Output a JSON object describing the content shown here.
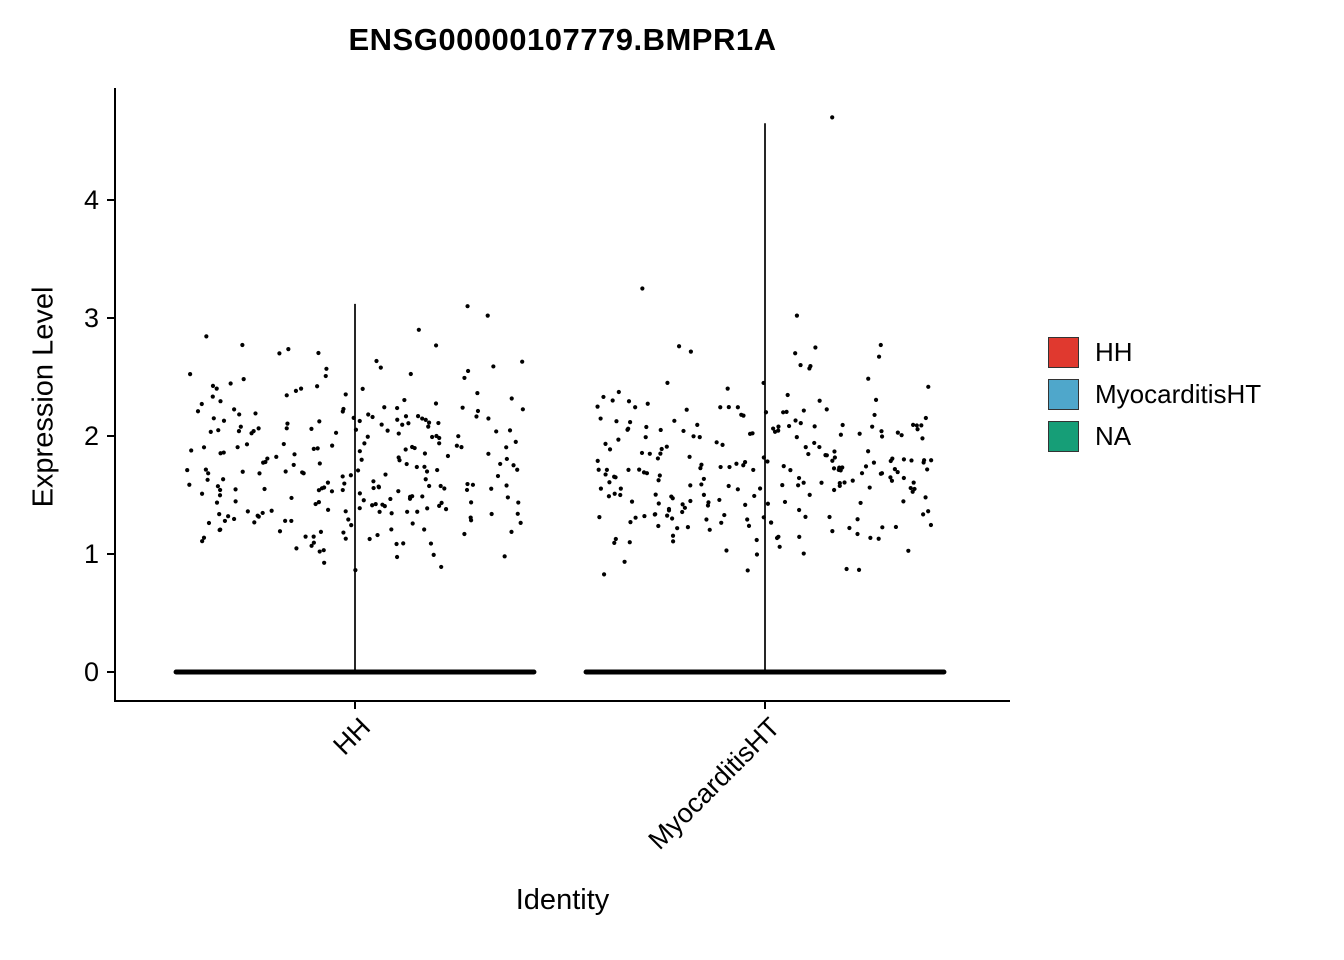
{
  "figure": {
    "background": "#FFFFFF"
  },
  "chart_data": {
    "type": "scatter",
    "subtype": "violin-jitter-expression-plot",
    "title": "ENSG00000107779.BMPR1A",
    "xlabel": "Identity",
    "ylabel": "Expression Level",
    "ylim": [
      -0.15,
      4.85
    ],
    "yticks": [
      0,
      1,
      2,
      3,
      4
    ],
    "grid": false,
    "axis_color": "#000000",
    "point_color": "#000000",
    "categories": [
      "HH",
      "MyocarditisHT"
    ],
    "legend": {
      "position": "right",
      "entries": [
        {
          "label": "HH",
          "color": "#E0392F"
        },
        {
          "label": "MyocarditisHT",
          "color": "#4FA7CB"
        },
        {
          "label": "NA",
          "color": "#169E77"
        }
      ]
    },
    "series": [
      {
        "name": "HH",
        "violin_line_top": 3.12,
        "zero_expression_band": {
          "y": 0,
          "fraction_of_width": 1.08
        },
        "n_expressing": 250,
        "y_mean": 1.72,
        "y_sd": 0.45,
        "expressing_range": [
          0.85,
          2.92
        ],
        "outliers": [
          {
            "dx": 0.67,
            "y": 3.1
          },
          {
            "dx": 0.79,
            "y": 3.02
          },
          {
            "dx": 0.38,
            "y": 2.9
          },
          {
            "dx": -0.45,
            "y": 2.7
          }
        ],
        "seed": 11
      },
      {
        "name": "MyocarditisHT",
        "violin_line_top": 4.65,
        "zero_expression_band": {
          "y": 0,
          "fraction_of_width": 1.08
        },
        "n_expressing": 245,
        "y_mean": 1.68,
        "y_sd": 0.45,
        "expressing_range": [
          0.8,
          2.9
        ],
        "outliers": [
          {
            "dx": 0.4,
            "y": 4.7
          },
          {
            "dx": -0.73,
            "y": 3.25
          },
          {
            "dx": 0.19,
            "y": 3.02
          },
          {
            "dx": 0.3,
            "y": 2.75
          }
        ],
        "seed": 23
      }
    ]
  }
}
